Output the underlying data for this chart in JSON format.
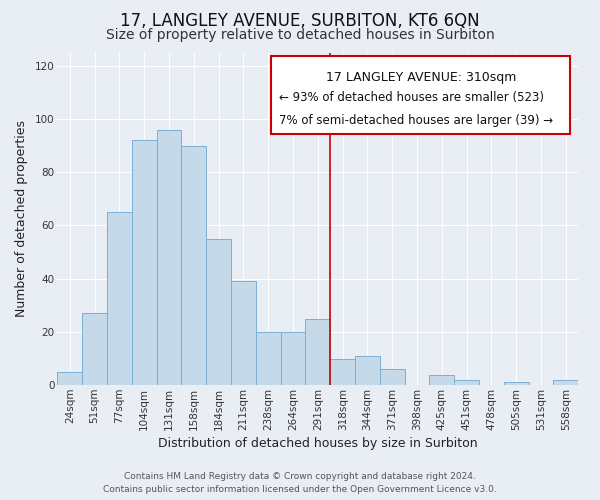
{
  "title": "17, LANGLEY AVENUE, SURBITON, KT6 6QN",
  "subtitle": "Size of property relative to detached houses in Surbiton",
  "xlabel": "Distribution of detached houses by size in Surbiton",
  "ylabel": "Number of detached properties",
  "bar_labels": [
    "24sqm",
    "51sqm",
    "77sqm",
    "104sqm",
    "131sqm",
    "158sqm",
    "184sqm",
    "211sqm",
    "238sqm",
    "264sqm",
    "291sqm",
    "318sqm",
    "344sqm",
    "371sqm",
    "398sqm",
    "425sqm",
    "451sqm",
    "478sqm",
    "505sqm",
    "531sqm",
    "558sqm"
  ],
  "bar_values": [
    5,
    27,
    65,
    92,
    96,
    90,
    55,
    39,
    20,
    20,
    25,
    10,
    11,
    6,
    0,
    4,
    2,
    0,
    1,
    0,
    2
  ],
  "bar_color": "#c6d9e8",
  "bar_edge_color": "#7bafd4",
  "ylim": [
    0,
    125
  ],
  "yticks": [
    0,
    20,
    40,
    60,
    80,
    100,
    120
  ],
  "vline_bin_index": 11,
  "annotation_title": "17 LANGLEY AVENUE: 310sqm",
  "annotation_line1": "← 93% of detached houses are smaller (523)",
  "annotation_line2": "7% of semi-detached houses are larger (39) →",
  "footer_line1": "Contains HM Land Registry data © Crown copyright and database right 2024.",
  "footer_line2": "Contains public sector information licensed under the Open Government Licence v3.0.",
  "background_color": "#e8eef4",
  "grid_color": "#ffffff",
  "vline_color": "#cc0000",
  "box_edge_color": "#cc0000",
  "title_fontsize": 12,
  "subtitle_fontsize": 10,
  "axis_label_fontsize": 9,
  "tick_fontsize": 7.5,
  "annotation_title_fontsize": 9,
  "annotation_body_fontsize": 8.5,
  "footer_fontsize": 6.5
}
